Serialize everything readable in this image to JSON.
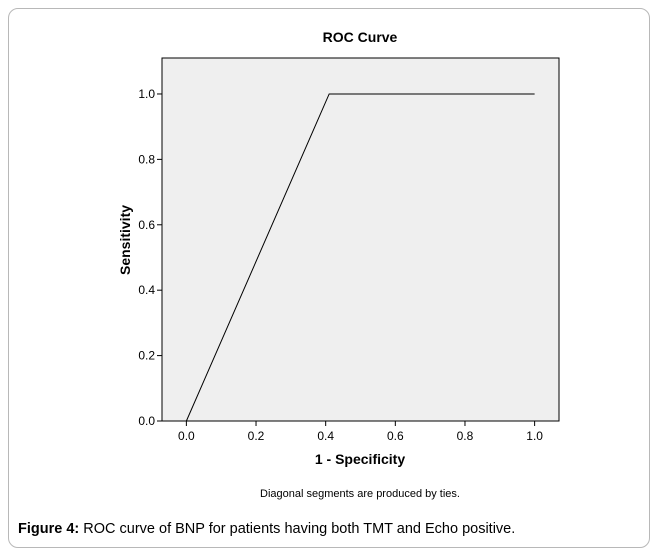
{
  "chart_data": {
    "type": "line",
    "title": "ROC Curve",
    "xlabel": "1 - Specificity",
    "ylabel": "Sensitivity",
    "xlim": [
      -0.07,
      1.07
    ],
    "ylim": [
      0.0,
      1.11
    ],
    "xticks": [
      "0.0",
      "0.2",
      "0.4",
      "0.6",
      "0.8",
      "1.0"
    ],
    "yticks": [
      "0.0",
      "0.2",
      "0.4",
      "0.6",
      "0.8",
      "1.0"
    ],
    "x": [
      0.0,
      0.41,
      1.0
    ],
    "y": [
      0.0,
      1.0,
      1.0
    ],
    "grid": false,
    "plot_background": "#efefef",
    "line_color": "#000000",
    "note": "Diagonal segments are produced by ties."
  },
  "caption": {
    "label": "Figure 4:",
    "text": " ROC curve of BNP for patients having both TMT and Echo positive."
  }
}
